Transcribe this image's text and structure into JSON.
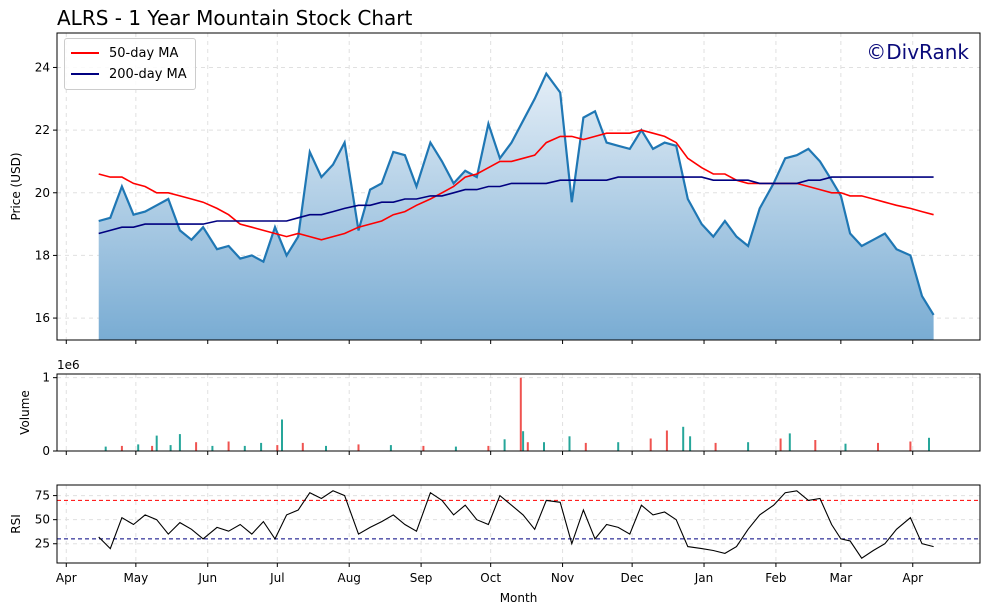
{
  "title": "ALRS - 1 Year Mountain Stock Chart",
  "watermark": "©DivRank",
  "xlabel": "Month",
  "month_labels": [
    "Apr",
    "May",
    "Jun",
    "Jul",
    "Aug",
    "Sep",
    "Oct",
    "Nov",
    "Dec",
    "Jan",
    "Feb",
    "Mar",
    "Apr"
  ],
  "colors": {
    "price": "#1f77b4",
    "ma50": "#ff0000",
    "ma200": "#000080",
    "vol_up": "#26a69a",
    "vol_down": "#ef5350",
    "rsi": "#000000",
    "rsi_over": "#ff0000",
    "rsi_under": "#000080"
  },
  "chart_data": [
    {
      "type": "area",
      "panel": "price",
      "ylabel": "Price (USD)",
      "ylim": [
        15.3,
        25.1
      ],
      "yticks": [
        16,
        18,
        20,
        22,
        24
      ],
      "grid": true,
      "legend_position": "top-left",
      "x_domain": [
        "2024-03-28",
        "2025-04-30"
      ],
      "x": [
        "2024-04-15",
        "2024-04-20",
        "2024-04-25",
        "2024-04-30",
        "2024-05-05",
        "2024-05-10",
        "2024-05-15",
        "2024-05-20",
        "2024-05-25",
        "2024-05-30",
        "2024-06-05",
        "2024-06-10",
        "2024-06-15",
        "2024-06-20",
        "2024-06-25",
        "2024-06-30",
        "2024-07-05",
        "2024-07-10",
        "2024-07-15",
        "2024-07-20",
        "2024-07-25",
        "2024-07-30",
        "2024-08-05",
        "2024-08-10",
        "2024-08-15",
        "2024-08-20",
        "2024-08-25",
        "2024-08-30",
        "2024-09-05",
        "2024-09-10",
        "2024-09-15",
        "2024-09-20",
        "2024-09-25",
        "2024-09-30",
        "2024-10-05",
        "2024-10-10",
        "2024-10-15",
        "2024-10-20",
        "2024-10-25",
        "2024-10-31",
        "2024-11-05",
        "2024-11-10",
        "2024-11-15",
        "2024-11-20",
        "2024-11-25",
        "2024-11-30",
        "2024-12-05",
        "2024-12-10",
        "2024-12-15",
        "2024-12-20",
        "2024-12-25",
        "2024-12-31",
        "2025-01-05",
        "2025-01-10",
        "2025-01-15",
        "2025-01-20",
        "2025-01-25",
        "2025-01-31",
        "2025-02-05",
        "2025-02-10",
        "2025-02-15",
        "2025-02-20",
        "2025-02-25",
        "2025-03-01",
        "2025-03-05",
        "2025-03-10",
        "2025-03-15",
        "2025-03-20",
        "2025-03-25",
        "2025-03-31",
        "2025-04-05",
        "2025-04-10"
      ],
      "series": [
        {
          "name": "",
          "values": [
            19.1,
            19.2,
            20.2,
            19.3,
            19.4,
            19.6,
            19.8,
            18.8,
            18.5,
            18.9,
            18.2,
            18.3,
            17.9,
            18.0,
            17.8,
            18.9,
            18.0,
            18.6,
            21.3,
            20.5,
            20.9,
            21.6,
            18.8,
            20.1,
            20.3,
            21.3,
            21.2,
            20.2,
            21.6,
            21.0,
            20.3,
            20.7,
            20.5,
            22.2,
            21.1,
            21.6,
            22.3,
            23.0,
            23.8,
            23.2,
            19.7,
            22.4,
            22.6,
            21.6,
            21.5,
            21.4,
            22.0,
            21.4,
            21.6,
            21.5,
            19.8,
            19.0,
            18.6,
            19.1,
            18.6,
            18.3,
            19.5,
            20.3,
            21.1,
            21.2,
            21.4,
            21.0,
            20.4,
            19.9,
            18.7,
            18.3,
            18.5,
            18.7,
            18.2,
            18.0,
            16.7,
            16.1
          ]
        },
        {
          "name": "50-day MA",
          "values": [
            20.6,
            20.5,
            20.5,
            20.3,
            20.2,
            20.0,
            20.0,
            19.9,
            19.8,
            19.7,
            19.5,
            19.3,
            19.0,
            18.9,
            18.8,
            18.7,
            18.6,
            18.7,
            18.6,
            18.5,
            18.6,
            18.7,
            18.9,
            19.0,
            19.1,
            19.3,
            19.4,
            19.6,
            19.8,
            20.0,
            20.2,
            20.5,
            20.6,
            20.8,
            21.0,
            21.0,
            21.1,
            21.2,
            21.6,
            21.8,
            21.8,
            21.7,
            21.8,
            21.9,
            21.9,
            21.9,
            22.0,
            21.9,
            21.8,
            21.6,
            21.1,
            20.8,
            20.6,
            20.6,
            20.4,
            20.3,
            20.3,
            20.3,
            20.3,
            20.3,
            20.2,
            20.1,
            20.0,
            20.0,
            19.9,
            19.9,
            19.8,
            19.7,
            19.6,
            19.5,
            19.4,
            19.3
          ]
        },
        {
          "name": "200-day MA",
          "values": [
            18.7,
            18.8,
            18.9,
            18.9,
            19.0,
            19.0,
            19.0,
            19.0,
            19.0,
            19.0,
            19.1,
            19.1,
            19.1,
            19.1,
            19.1,
            19.1,
            19.1,
            19.2,
            19.3,
            19.3,
            19.4,
            19.5,
            19.6,
            19.6,
            19.7,
            19.7,
            19.8,
            19.8,
            19.9,
            19.9,
            20.0,
            20.1,
            20.1,
            20.2,
            20.2,
            20.3,
            20.3,
            20.3,
            20.3,
            20.4,
            20.4,
            20.4,
            20.4,
            20.4,
            20.5,
            20.5,
            20.5,
            20.5,
            20.5,
            20.5,
            20.5,
            20.5,
            20.4,
            20.4,
            20.4,
            20.4,
            20.3,
            20.3,
            20.3,
            20.3,
            20.4,
            20.4,
            20.5,
            20.5,
            20.5,
            20.5,
            20.5,
            20.5,
            20.5,
            20.5,
            20.5,
            20.5
          ]
        }
      ]
    },
    {
      "type": "bar",
      "panel": "volume",
      "ylabel": "Volume",
      "ylim": [
        0,
        1050000
      ],
      "yticks": [
        0,
        1
      ],
      "scale_label": "1e6",
      "x_domain": [
        "2024-03-28",
        "2025-04-30"
      ],
      "x": [
        "2024-04-18",
        "2024-04-25",
        "2024-05-02",
        "2024-05-08",
        "2024-05-10",
        "2024-05-16",
        "2024-05-20",
        "2024-05-27",
        "2024-06-03",
        "2024-06-10",
        "2024-06-17",
        "2024-06-24",
        "2024-07-01",
        "2024-07-03",
        "2024-07-12",
        "2024-07-22",
        "2024-08-05",
        "2024-08-19",
        "2024-09-02",
        "2024-09-16",
        "2024-09-30",
        "2024-10-07",
        "2024-10-14",
        "2024-10-15",
        "2024-10-17",
        "2024-10-24",
        "2024-11-04",
        "2024-11-11",
        "2024-11-25",
        "2024-12-09",
        "2024-12-16",
        "2024-12-23",
        "2024-12-26",
        "2025-01-06",
        "2025-01-20",
        "2025-02-03",
        "2025-02-07",
        "2025-02-18",
        "2025-03-03",
        "2025-03-17",
        "2025-03-31",
        "2025-04-08"
      ],
      "values": [
        60000,
        70000,
        90000,
        70000,
        210000,
        80000,
        230000,
        120000,
        70000,
        130000,
        70000,
        110000,
        80000,
        430000,
        110000,
        70000,
        90000,
        80000,
        70000,
        60000,
        70000,
        160000,
        1000000,
        270000,
        120000,
        120000,
        200000,
        110000,
        120000,
        170000,
        280000,
        330000,
        200000,
        110000,
        120000,
        170000,
        240000,
        150000,
        100000,
        110000,
        130000,
        180000
      ],
      "direction": [
        "up",
        "down",
        "up",
        "down",
        "up",
        "up",
        "up",
        "down",
        "up",
        "down",
        "up",
        "up",
        "down",
        "up",
        "down",
        "up",
        "down",
        "up",
        "down",
        "up",
        "down",
        "up",
        "down",
        "up",
        "down",
        "up",
        "up",
        "down",
        "up",
        "down",
        "down",
        "up",
        "up",
        "down",
        "up",
        "down",
        "up",
        "down",
        "up",
        "down",
        "down",
        "up"
      ]
    },
    {
      "type": "line",
      "panel": "rsi",
      "ylabel": "RSI",
      "ylim": [
        5,
        86
      ],
      "yticks": [
        25,
        50,
        75
      ],
      "reference_lines": [
        70,
        30
      ],
      "x_domain": [
        "2024-03-28",
        "2025-04-30"
      ],
      "x": [
        "2024-04-15",
        "2024-04-20",
        "2024-04-25",
        "2024-04-30",
        "2024-05-05",
        "2024-05-10",
        "2024-05-15",
        "2024-05-20",
        "2024-05-25",
        "2024-05-30",
        "2024-06-05",
        "2024-06-10",
        "2024-06-15",
        "2024-06-20",
        "2024-06-25",
        "2024-06-30",
        "2024-07-05",
        "2024-07-10",
        "2024-07-15",
        "2024-07-20",
        "2024-07-25",
        "2024-07-30",
        "2024-08-05",
        "2024-08-10",
        "2024-08-15",
        "2024-08-20",
        "2024-08-25",
        "2024-08-30",
        "2024-09-05",
        "2024-09-10",
        "2024-09-15",
        "2024-09-20",
        "2024-09-25",
        "2024-09-30",
        "2024-10-05",
        "2024-10-10",
        "2024-10-15",
        "2024-10-20",
        "2024-10-25",
        "2024-10-31",
        "2024-11-05",
        "2024-11-10",
        "2024-11-15",
        "2024-11-20",
        "2024-11-25",
        "2024-11-30",
        "2024-12-05",
        "2024-12-10",
        "2024-12-15",
        "2024-12-20",
        "2024-12-25",
        "2024-12-31",
        "2025-01-05",
        "2025-01-10",
        "2025-01-15",
        "2025-01-20",
        "2025-01-25",
        "2025-01-31",
        "2025-02-05",
        "2025-02-10",
        "2025-02-15",
        "2025-02-20",
        "2025-02-25",
        "2025-03-01",
        "2025-03-05",
        "2025-03-10",
        "2025-03-15",
        "2025-03-20",
        "2025-03-25",
        "2025-03-31",
        "2025-04-05",
        "2025-04-10"
      ],
      "values": [
        32,
        20,
        52,
        45,
        55,
        50,
        35,
        47,
        40,
        30,
        42,
        38,
        45,
        35,
        48,
        30,
        55,
        60,
        78,
        72,
        80,
        75,
        35,
        42,
        48,
        55,
        45,
        38,
        78,
        70,
        55,
        65,
        50,
        45,
        75,
        65,
        55,
        40,
        70,
        68,
        25,
        60,
        30,
        45,
        42,
        35,
        65,
        55,
        58,
        50,
        22,
        20,
        18,
        15,
        22,
        40,
        55,
        65,
        78,
        80,
        70,
        72,
        45,
        30,
        28,
        10,
        18,
        25,
        40,
        52,
        25,
        22
      ]
    }
  ]
}
